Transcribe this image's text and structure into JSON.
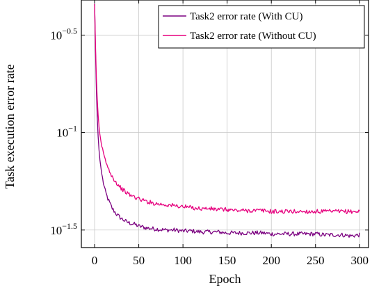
{
  "chart_data": {
    "type": "line",
    "title": "",
    "xlabel": "Epoch",
    "ylabel": "Task execution error rate",
    "xlim": [
      -15,
      310
    ],
    "xticks": [
      0,
      50,
      100,
      150,
      200,
      250,
      300
    ],
    "xtick_labels": [
      "0",
      "50",
      "100",
      "150",
      "200",
      "250",
      "300"
    ],
    "y_scale": "log10",
    "ylim_log10": [
      -1.59,
      -0.32
    ],
    "yticks_log10": [
      -0.5,
      -1,
      -1.5
    ],
    "ytick_labels": [
      {
        "base": "10",
        "exp": "−0.5"
      },
      {
        "base": "10",
        "exp": "−1"
      },
      {
        "base": "10",
        "exp": "−1.5"
      }
    ],
    "grid": true,
    "legend_position": "top-right",
    "series": [
      {
        "name": "Task2 error rate (With CU)",
        "color": "#7b0080",
        "x": [
          0,
          1,
          2,
          3,
          4,
          5,
          6,
          8,
          10,
          12,
          15,
          20,
          25,
          30,
          35,
          40,
          45,
          50,
          60,
          70,
          80,
          90,
          100,
          110,
          120,
          130,
          140,
          150,
          160,
          170,
          180,
          190,
          200,
          210,
          220,
          230,
          240,
          250,
          260,
          270,
          280,
          290,
          300
        ],
        "y_log10": [
          -0.34,
          -0.58,
          -0.78,
          -0.92,
          -1.02,
          -1.09,
          -1.14,
          -1.21,
          -1.26,
          -1.3,
          -1.34,
          -1.39,
          -1.42,
          -1.44,
          -1.455,
          -1.465,
          -1.47,
          -1.48,
          -1.49,
          -1.495,
          -1.5,
          -1.5,
          -1.505,
          -1.505,
          -1.51,
          -1.51,
          -1.51,
          -1.515,
          -1.515,
          -1.515,
          -1.515,
          -1.515,
          -1.52,
          -1.52,
          -1.52,
          -1.52,
          -1.52,
          -1.52,
          -1.525,
          -1.525,
          -1.525,
          -1.53,
          -1.525
        ]
      },
      {
        "name": "Task2 error rate (Without CU)",
        "color": "#e6007e",
        "x": [
          0,
          1,
          2,
          3,
          4,
          5,
          6,
          8,
          10,
          12,
          15,
          20,
          25,
          30,
          35,
          40,
          45,
          50,
          60,
          70,
          80,
          90,
          100,
          110,
          120,
          130,
          140,
          150,
          160,
          170,
          180,
          190,
          200,
          210,
          220,
          230,
          240,
          250,
          260,
          270,
          280,
          290,
          300
        ],
        "y_log10": [
          -0.34,
          -0.55,
          -0.72,
          -0.83,
          -0.91,
          -0.97,
          -1.01,
          -1.07,
          -1.11,
          -1.14,
          -1.18,
          -1.225,
          -1.26,
          -1.285,
          -1.305,
          -1.32,
          -1.33,
          -1.34,
          -1.355,
          -1.365,
          -1.37,
          -1.375,
          -1.38,
          -1.385,
          -1.39,
          -1.39,
          -1.395,
          -1.395,
          -1.4,
          -1.4,
          -1.4,
          -1.4,
          -1.405,
          -1.405,
          -1.405,
          -1.405,
          -1.405,
          -1.405,
          -1.405,
          -1.405,
          -1.405,
          -1.405,
          -1.405
        ]
      }
    ]
  }
}
